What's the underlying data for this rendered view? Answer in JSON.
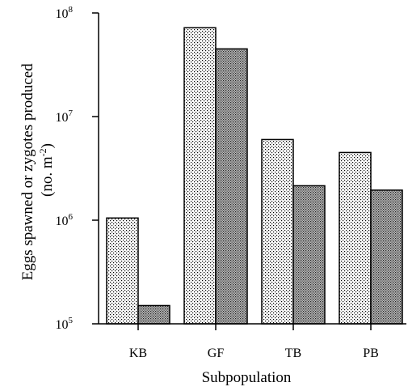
{
  "chart_data": {
    "type": "bar",
    "title": "",
    "xlabel": "Subpopulation",
    "ylabel_line1": "Eggs spawned or zygotes produced",
    "ylabel_line2_main": "(no. m",
    "ylabel_line2_sup": "-2",
    "ylabel_line2_end": ")",
    "yscale": "log",
    "ylim": [
      100000,
      100000000
    ],
    "yticks": [
      {
        "value": 100000,
        "base": "10",
        "exp": "5"
      },
      {
        "value": 1000000,
        "base": "10",
        "exp": "6"
      },
      {
        "value": 10000000,
        "base": "10",
        "exp": "7"
      },
      {
        "value": 100000000,
        "base": "10",
        "exp": "8"
      }
    ],
    "categories": [
      "KB",
      "GF",
      "TB",
      "PB"
    ],
    "series": [
      {
        "values": [
          1050000,
          72000000,
          6000000,
          4500000
        ],
        "pattern": "light-stipple"
      },
      {
        "values": [
          150000,
          45000000,
          2150000,
          1950000
        ],
        "pattern": "dark-stipple"
      }
    ],
    "grid": false,
    "legend": "none"
  }
}
